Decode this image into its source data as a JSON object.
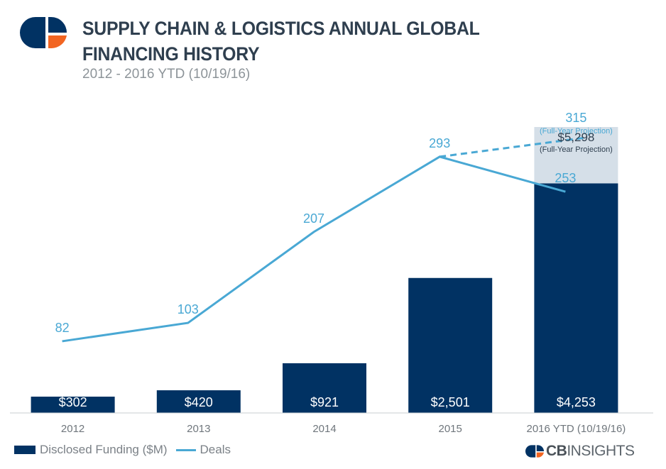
{
  "header": {
    "title": "SUPPLY CHAIN & LOGISTICS ANNUAL GLOBAL FINANCING HISTORY",
    "subtitle": "2012 - 2016 YTD (10/19/16)"
  },
  "brand": {
    "bold": "CB",
    "light": "INSIGHTS"
  },
  "colors": {
    "bar": "#013263",
    "projection": "#d5dfe8",
    "line": "#49a8d4",
    "axis": "#c8ccd0"
  },
  "chart_data": {
    "type": "bar",
    "categories": [
      "2012",
      "2013",
      "2014",
      "2015",
      "2016 YTD (10/19/16)"
    ],
    "series": [
      {
        "name": "Disclosed Funding ($M)",
        "kind": "bar",
        "values": [
          302,
          420,
          921,
          2501,
          4253
        ],
        "labels": [
          "$302",
          "$420",
          "$921",
          "$2,501",
          "$4,253"
        ]
      },
      {
        "name": "Deals",
        "kind": "line",
        "values": [
          82,
          103,
          207,
          293,
          253
        ]
      }
    ],
    "projection": {
      "funding": {
        "value": 5298,
        "label": "$5,298",
        "note": "(Full-Year Projection)"
      },
      "deals": {
        "value": 315,
        "label": "315",
        "note": "(Full-Year Projection)"
      }
    },
    "ylim_funding": [
      0,
      5298
    ],
    "ylim_deals": [
      0,
      327
    ],
    "legend": [
      "Disclosed Funding ($M)",
      "Deals"
    ]
  }
}
